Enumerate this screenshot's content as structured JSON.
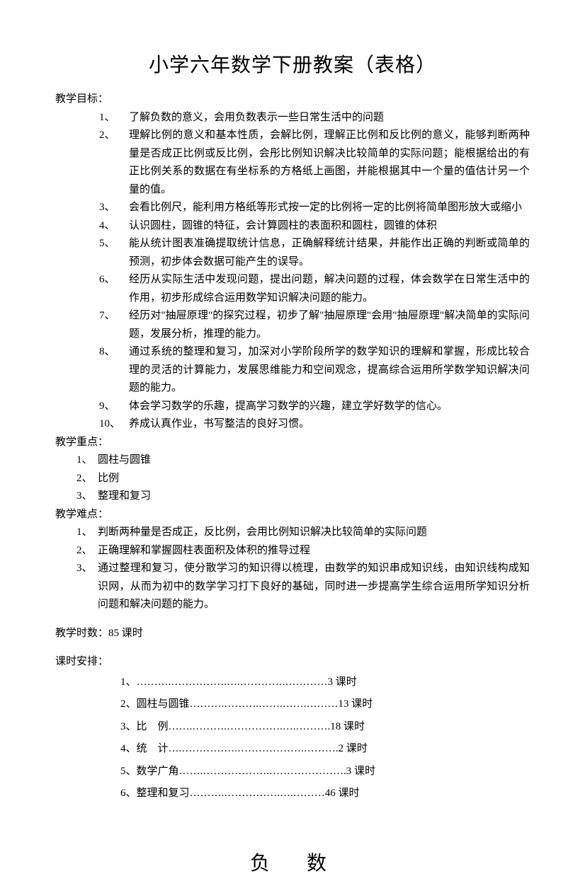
{
  "title": "小学六年数学下册教案（表格）",
  "labels": {
    "goals": "教学目标：",
    "keypoints": "教学重点：",
    "difficulties": "教学难点：",
    "hours": "教学时数：85 课时",
    "schedule": "课时安排："
  },
  "goals": [
    {
      "n": "1、",
      "t": "了解负数的意义，会用负数表示一些日常生活中的问题"
    },
    {
      "n": "2、",
      "t": "理解比例的意义和基本性质，会解比例，理解正比例和反比例的意义，能够判断两种量是否成正比例或反比例，会彤比例知识解决比较简单的实际问题；能根据给出的有正比例关系的数据在有坐标系的方格纸上画图，并能根据其中一个量的值估计另一个量的值。"
    },
    {
      "n": "3、",
      "t": "会看比例尺，能利用方格纸等形式按一定的比例将一定的比例将简单图形放大或缩小"
    },
    {
      "n": "4、",
      "t": "认识圆柱，圆锥的特征，会计算圆柱的表面积和圆柱，圆锥的体积"
    },
    {
      "n": "5、",
      "t": "能从统计图表准确提取统计信息，正确解释统计结果，并能作出正确的判断或简单的预测，初步体会数据可能产生的误导。"
    },
    {
      "n": "6、",
      "t": "经历从实际生活中发现问题，提出问题，解决问题的过程，体会数学在日常生活中的作用，初步形成综合运用数学知识解决问题的能力。"
    },
    {
      "n": "7、",
      "t": "经历对\"抽屉原理\"的探究过程，初步了解\"抽屉原理\"会用\"抽屉原理\"解决简单的实际问题，发展分析，推理的能力。"
    },
    {
      "n": "8、",
      "t": "通过系统的整理和复习，加深对小学阶段所学的数学知识的理解和掌握，形成比较合理的灵活的计算能力，发展思维能力和空间观念，提高综合运用所学数学知识解决问题的能力。"
    },
    {
      "n": "9、",
      "t": "体会学习数学的乐趣，提高学习数学的兴趣，建立学好数学的信心。"
    },
    {
      "n": "10、",
      "t": "养成认真作业，书写整洁的良好习惯。"
    }
  ],
  "keypoints": [
    {
      "n": "1、",
      "t": "圆柱与圆锥"
    },
    {
      "n": "2、",
      "t": "比例"
    },
    {
      "n": "3、",
      "t": "整理和复习"
    }
  ],
  "difficulties": [
    {
      "n": "1、",
      "t": "判断两种量是否成正，反比例，会用比例知识解决比较简单的实际问题"
    },
    {
      "n": "2、",
      "t": "正确理解和掌握圆柱表面积及体积的推导过程"
    },
    {
      "n": "3、",
      "t": "通过整理和复习，使分散学习的知识得以梳理，由数学的知识串成知识线，由知识线构成知识网，从而为初中的数学学习打下良好的基础，同时进一步提高学生综合运用所学知识分析问题和解决问题的能力。"
    }
  ],
  "schedule": [
    "1、……….…………….….………….…………3 课时",
    "2、圆柱与圆锥……….……….…….…….………13 课时",
    "3、比　例…….……….…………….….……….18 课时",
    "4、统　计….…………….……………….……….2 课时",
    "5、数学广角…….……………….………………….3 课时",
    "6、整理和复习……….…………….….………46 课时"
  ],
  "subtitle": "负　数"
}
